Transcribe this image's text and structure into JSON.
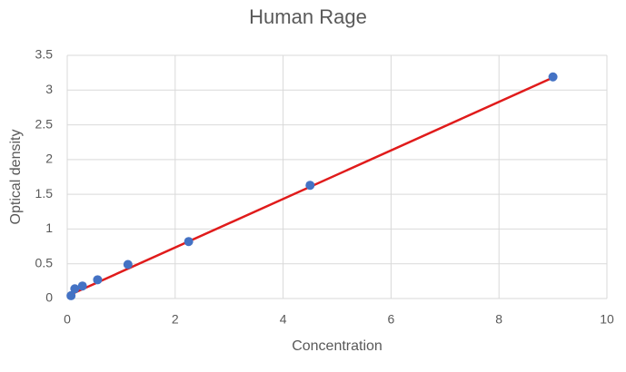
{
  "chart_data": {
    "type": "scatter",
    "title": "Human Rage",
    "x_label": "Concentration",
    "y_label": "Optical density",
    "series": [
      {
        "color": "#4472c4",
        "x": [
          0.0703,
          0.1406,
          0.2813,
          0.5625,
          1.125,
          2.25,
          4.5,
          9
        ],
        "values": [
          0.04,
          0.14,
          0.18,
          0.27,
          0.49,
          0.82,
          1.63,
          3.19
        ]
      }
    ],
    "trendline": {
      "color": "#e01b1b",
      "x": [
        0.07,
        9
      ],
      "values": [
        0.06,
        3.18
      ]
    },
    "xlim": [
      0,
      10
    ],
    "xticks": [
      0,
      2,
      4,
      6,
      8,
      10
    ],
    "ylim": [
      0,
      3.5
    ],
    "yticks": [
      0,
      0.5,
      1,
      1.5,
      2,
      2.5,
      3,
      3.5
    ],
    "grid": true
  }
}
